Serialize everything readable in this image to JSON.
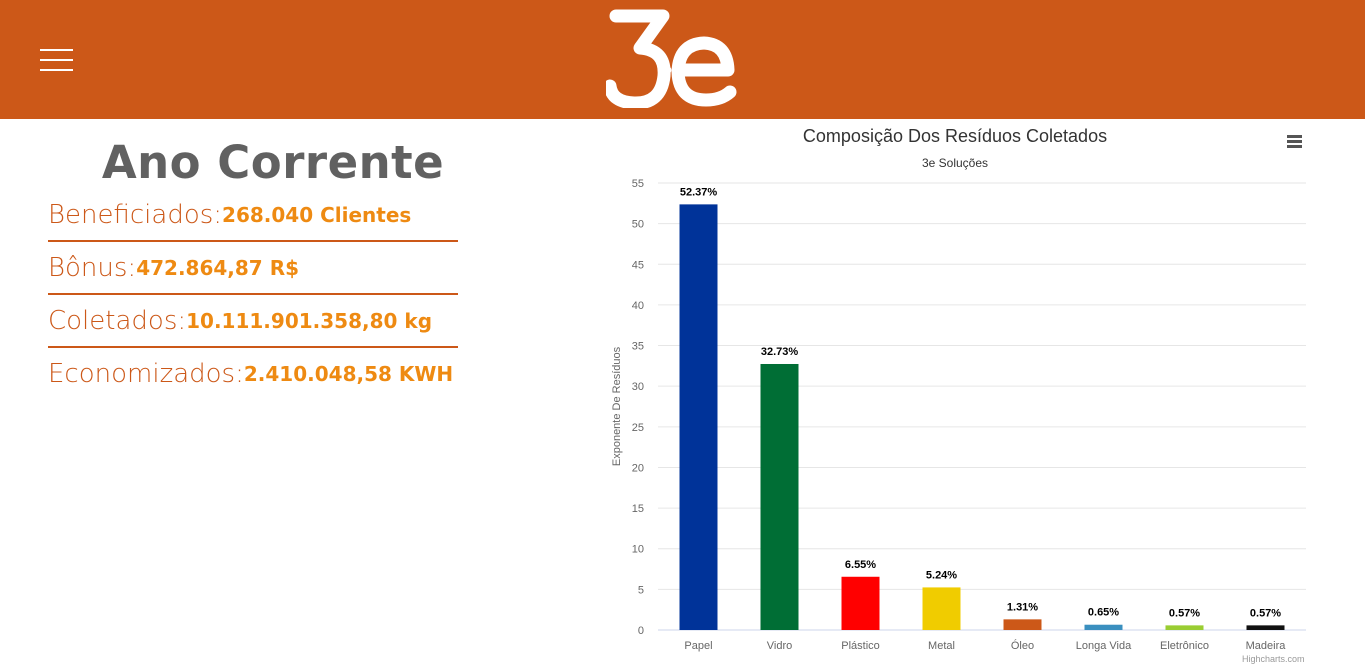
{
  "header": {
    "brand_name": "3e",
    "brand_color": "#cc5818",
    "menu_icon": "hamburger-menu-icon"
  },
  "stats": {
    "title": "Ano Corrente",
    "rows": [
      {
        "label": "Beneficiados:",
        "value": "268.040 Clientes"
      },
      {
        "label": "Bônus:",
        "value": "472.864,87 R$"
      },
      {
        "label": "Coletados:",
        "value": "10.111.901.358,80 kg"
      },
      {
        "label": "Economizados:",
        "value": "2.410.048,58 KWH"
      }
    ]
  },
  "chart_data": {
    "type": "bar",
    "title": "Composição Dos Resíduos Coletados",
    "subtitle": "3e Soluções",
    "xlabel": "",
    "ylabel": "Exponente De Resíduos",
    "categories": [
      "Papel",
      "Vidro",
      "Plástico",
      "Metal",
      "Óleo",
      "Longa Vida",
      "Eletrônico",
      "Madeira"
    ],
    "values": [
      52.37,
      32.73,
      6.55,
      5.24,
      1.31,
      0.65,
      0.57,
      0.57
    ],
    "data_labels": [
      "52.37%",
      "32.73%",
      "6.55%",
      "5.24%",
      "1.31%",
      "0.65%",
      "0.57%",
      "0.57%"
    ],
    "colors": [
      "#003399",
      "#006e35",
      "#ff0000",
      "#f0cc00",
      "#cc5818",
      "#3a8fbf",
      "#9acd32",
      "#111111"
    ],
    "ylim": [
      0,
      55
    ],
    "yticks": [
      0,
      5,
      10,
      15,
      20,
      25,
      30,
      35,
      40,
      45,
      50,
      55
    ],
    "grid": true,
    "legend": "none",
    "credits": "Highcharts.com",
    "menu_icon": "context-menu-icon"
  }
}
